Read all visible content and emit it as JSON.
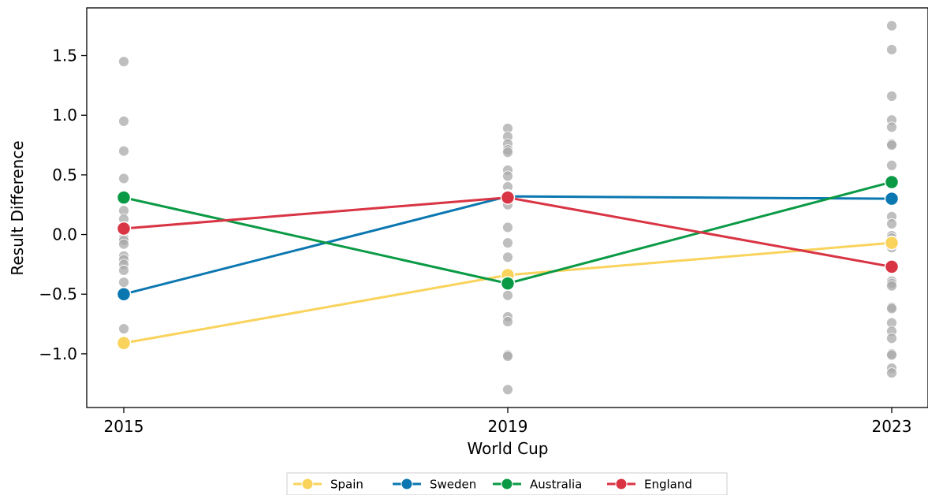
{
  "chart_data": {
    "type": "line",
    "xlabel": "World Cup",
    "ylabel": "Result Difference",
    "categories": [
      "2015",
      "2019",
      "2023"
    ],
    "yticks": [
      -1.0,
      -0.5,
      0.0,
      0.5,
      1.0,
      1.5
    ],
    "ytick_labels": [
      "−1.0",
      "−0.5",
      "0.0",
      "0.5",
      "1.0",
      "1.5"
    ],
    "ylim": [
      -1.45,
      1.9
    ],
    "grid": false,
    "legend_position": "bottom-center",
    "background_points": {
      "color": "#a9a9a9",
      "values": [
        [
          1.45,
          0.95,
          0.7,
          0.47,
          0.31,
          0.2,
          0.13,
          0.05,
          -0.03,
          -0.05,
          -0.08,
          -0.18,
          -0.21,
          -0.25,
          -0.3,
          -0.4,
          -0.5,
          -0.52,
          -0.79,
          -0.91
        ],
        [
          0.89,
          0.82,
          0.76,
          0.71,
          0.69,
          0.54,
          0.49,
          0.4,
          0.31,
          0.29,
          0.25,
          0.06,
          -0.07,
          -0.19,
          -0.34,
          -0.41,
          -0.51,
          -0.69,
          -0.73,
          -1.01,
          -1.02,
          -1.3
        ],
        [
          1.75,
          1.55,
          1.16,
          0.96,
          0.9,
          0.76,
          0.75,
          0.58,
          0.44,
          0.3,
          0.15,
          0.09,
          -0.01,
          -0.03,
          -0.06,
          -0.11,
          -0.28,
          -0.39,
          -0.41,
          -0.43,
          -0.61,
          -0.62,
          -0.74,
          -0.81,
          -0.87,
          -1.0,
          -1.01,
          -1.12,
          -1.16
        ]
      ]
    },
    "series": [
      {
        "name": "Spain",
        "color": "#f9d35c",
        "values": [
          -0.91,
          -0.34,
          -0.07
        ]
      },
      {
        "name": "Sweden",
        "color": "#0b77b0",
        "values": [
          -0.5,
          0.32,
          0.3
        ]
      },
      {
        "name": "Australia",
        "color": "#0a9a45",
        "values": [
          0.31,
          -0.41,
          0.44
        ]
      },
      {
        "name": "England",
        "color": "#d93444",
        "values": [
          0.05,
          0.31,
          -0.27
        ]
      }
    ]
  }
}
